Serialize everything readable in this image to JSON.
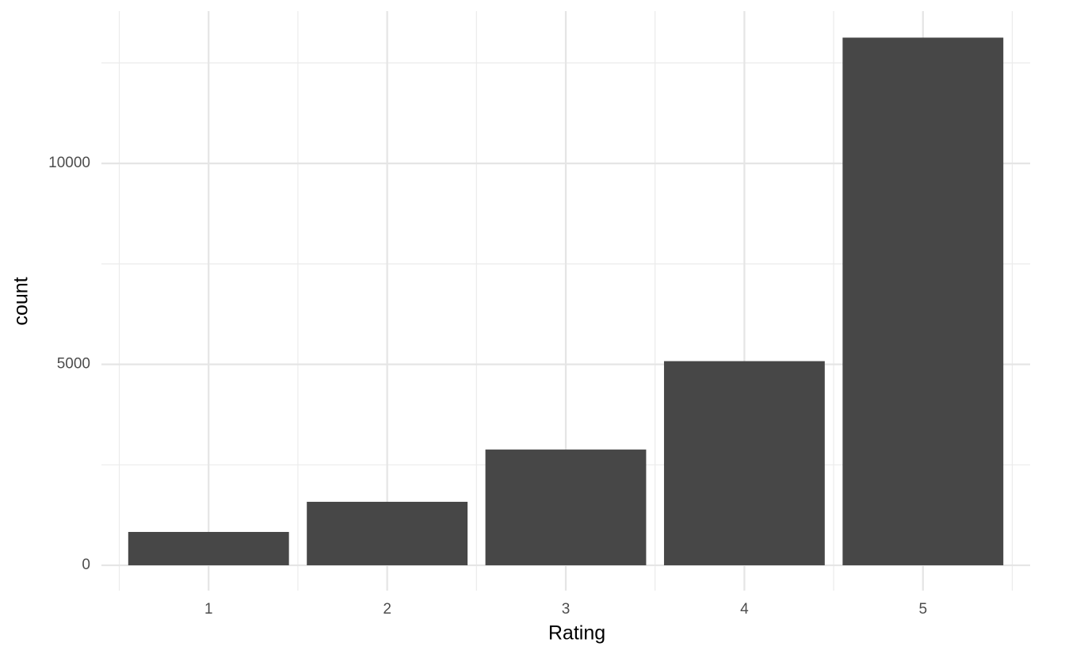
{
  "chart_data": {
    "type": "bar",
    "x_label": "Rating",
    "y_label": "count",
    "categories": [
      "1",
      "2",
      "3",
      "4",
      "5"
    ],
    "values": [
      830,
      1580,
      2880,
      5080,
      13130
    ],
    "color": "#474747",
    "ylim": [
      -630,
      13790
    ],
    "yticks": [
      0,
      5000,
      10000
    ],
    "y_minor_ticks": [
      2500,
      7500,
      12500
    ],
    "grid": true
  }
}
